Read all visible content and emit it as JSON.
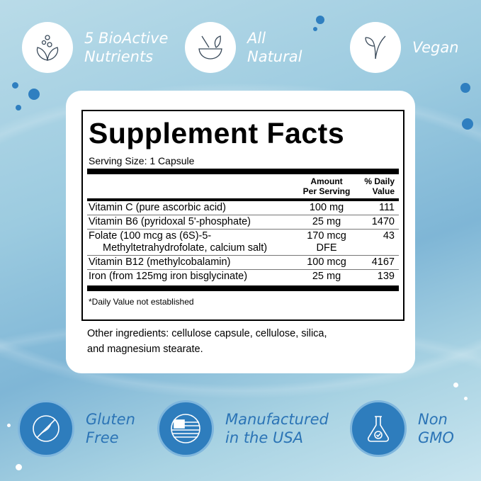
{
  "top_badges": [
    {
      "icon": "nutrients-leaf-icon",
      "line1": "5 BioActive",
      "line2": "Nutrients"
    },
    {
      "icon": "mortar-pestle-icon",
      "line1": "All",
      "line2": "Natural"
    },
    {
      "icon": "vegan-leaf-icon",
      "line1": "Vegan",
      "line2": ""
    }
  ],
  "bottom_badges": [
    {
      "icon": "gluten-free-icon",
      "line1": "Gluten",
      "line2": "Free"
    },
    {
      "icon": "usa-flag-icon",
      "line1": "Manufactured",
      "line2": "in the USA"
    },
    {
      "icon": "non-gmo-flask-icon",
      "line1": "Non",
      "line2": "GMO"
    }
  ],
  "facts": {
    "title": "Supplement Facts",
    "serving": "Serving Size: 1 Capsule",
    "headers": {
      "amount1": "Amount",
      "amount2": "Per Serving",
      "dv1": "% Daily",
      "dv2": "Value"
    },
    "rows": [
      {
        "name": "Vitamin C (pure ascorbic acid)",
        "amount": "100 mg",
        "dv": "111"
      },
      {
        "name": "Vitamin B6 (pyridoxal 5'-phosphate)",
        "amount": "25 mg",
        "dv": "1470"
      },
      {
        "name": "Folate (100 mcg as (6S)-5-",
        "name2": "Methyltetrahydrofolate, calcium salt)",
        "amount": "170 mcg",
        "amount2": "DFE",
        "dv": "43"
      },
      {
        "name": "Vitamin B12 (methylcobalamin)",
        "amount": "100 mcg",
        "dv": "4167"
      },
      {
        "name": "Iron (from 125mg iron bisglycinate)",
        "amount": "25 mg",
        "dv": "139"
      }
    ],
    "footnote": "*Daily Value not established",
    "other1": "Other ingredients: cellulose capsule, cellulose, silica,",
    "other2": "and magnesium stearate."
  },
  "colors": {
    "accent": "#2e7dbd",
    "background": "#9ccbe0"
  }
}
